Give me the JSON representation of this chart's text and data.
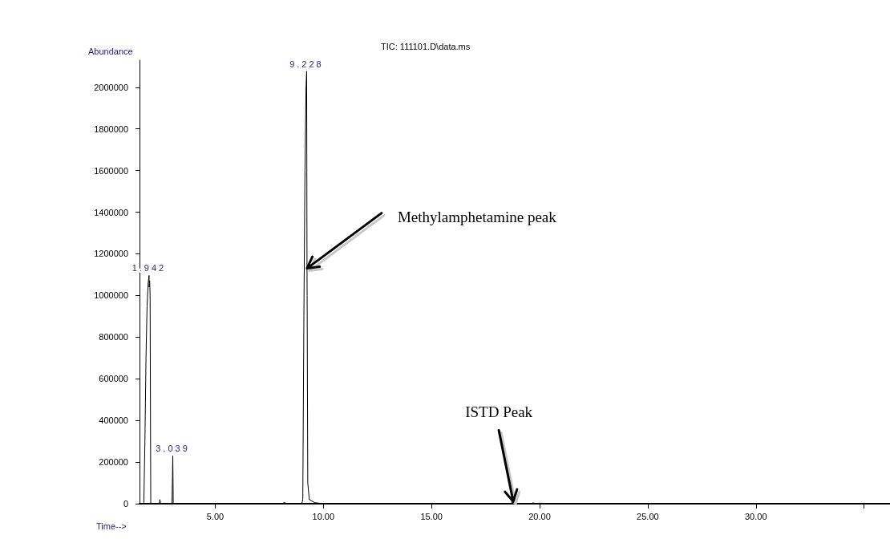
{
  "chart_data": {
    "type": "line",
    "title": "TIC: 111101.D\\data.ms",
    "xlabel": "Time-->",
    "ylabel": "Abundance",
    "xlim": [
      1.5,
      36.2
    ],
    "xticks": [
      {
        "value": 5,
        "label": "5.00"
      },
      {
        "value": 10,
        "label": "10.00"
      },
      {
        "value": 15,
        "label": "15.00"
      },
      {
        "value": 20,
        "label": "20.00"
      },
      {
        "value": 25,
        "label": "25.00"
      },
      {
        "value": 30,
        "label": "30.00"
      },
      {
        "value": 35,
        "label": null
      }
    ],
    "ylim": [
      0,
      2130000
    ],
    "yticks": [
      0,
      200000,
      400000,
      600000,
      800000,
      1000000,
      1200000,
      1400000,
      1600000,
      1800000,
      2000000
    ],
    "grid": false,
    "marker": "none",
    "line_style": "solid",
    "series": [
      {
        "color": "#000000",
        "x": [
          1.5,
          1.65,
          1.7,
          1.75,
          1.8,
          1.85,
          1.9,
          1.942,
          1.95,
          1.97,
          1.99,
          2.02,
          2.3,
          2.42,
          2.44,
          2.47,
          3.0,
          3.02,
          3.039,
          3.06,
          8.1,
          8.2,
          8.3,
          9.0,
          9.05,
          9.1,
          9.15,
          9.2,
          9.228,
          9.245,
          9.25,
          9.28,
          9.35,
          9.6,
          10.0,
          18.7,
          18.75,
          18.78,
          18.85,
          19.6,
          19.7,
          19.8,
          36.2
        ],
        "values": [
          0,
          0,
          5000,
          300000,
          700000,
          950000,
          1060000,
          1096000,
          1040000,
          1070000,
          1000000,
          0,
          0,
          0,
          20000,
          0,
          0,
          100000,
          230000,
          0,
          0,
          6000,
          0,
          0,
          20000,
          900000,
          1600000,
          2000000,
          2077000,
          1130000,
          1000000,
          100000,
          20000,
          5000,
          0,
          0,
          40000,
          10000,
          0,
          0,
          4000,
          0,
          0
        ]
      }
    ],
    "annotations": [
      {
        "text": "1.942",
        "x": 1.942,
        "y": 1096000
      },
      {
        "text": "3.039",
        "x": 3.039,
        "y": 230000
      },
      {
        "text": "9.228",
        "x": 9.228,
        "y": 2077000
      },
      {
        "text": "Methylamphetamine peak",
        "x": 9.245,
        "y": 1130000
      },
      {
        "text": "ISTD Peak",
        "x": 18.78,
        "y": 10000
      }
    ]
  }
}
